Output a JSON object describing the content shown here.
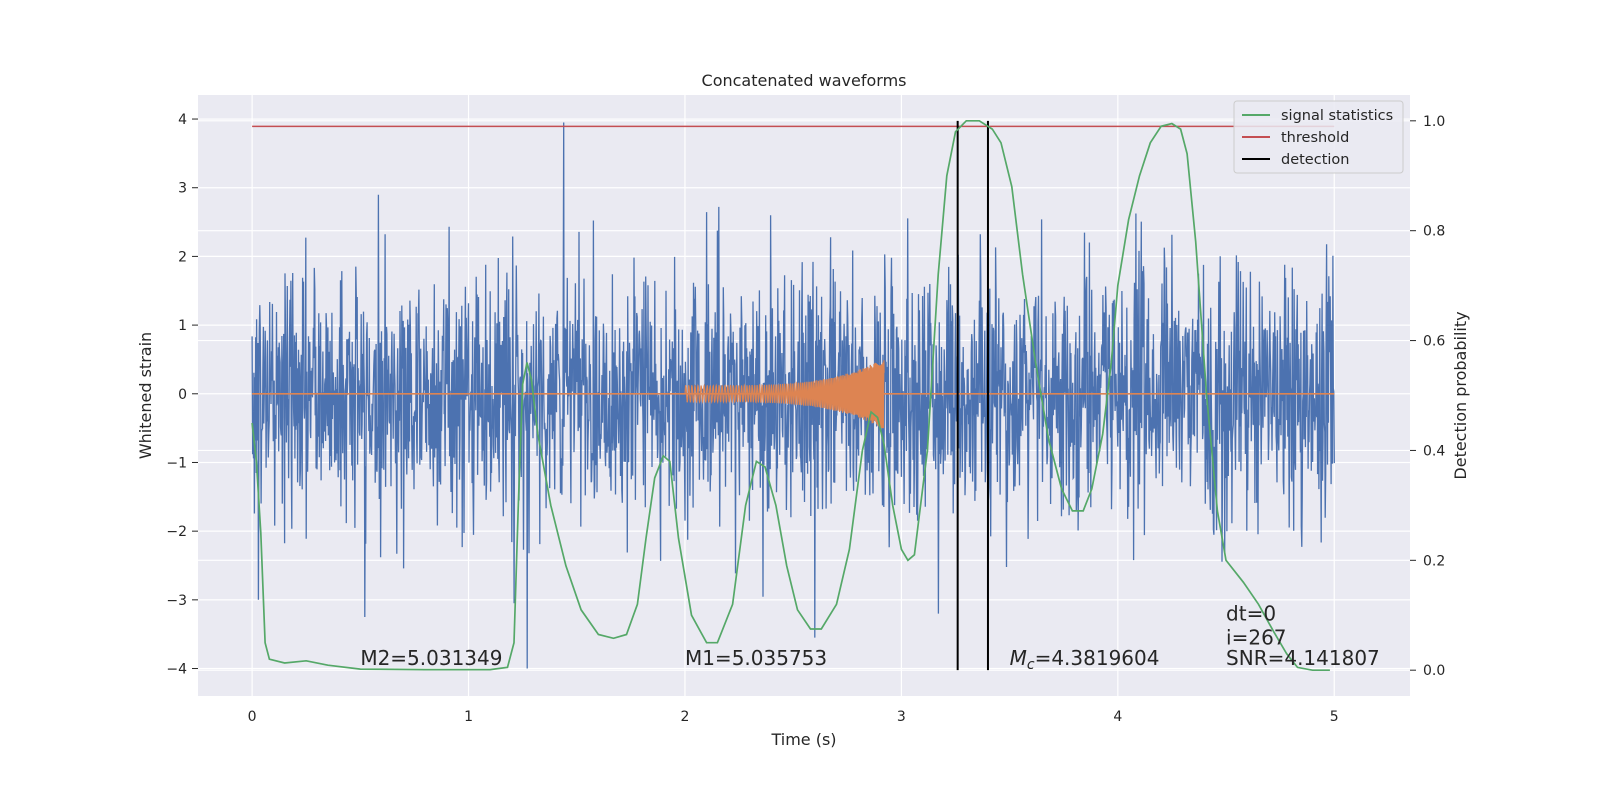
{
  "chart_data": {
    "type": "line",
    "title": "Concatenated waveforms",
    "xlabel": "Time (s)",
    "ylabel": "Whitened strain",
    "y2label": "Detection probability",
    "xlim": [
      -0.25,
      5.35
    ],
    "ylim": [
      -4.4,
      4.35
    ],
    "y2lim": [
      -0.047,
      1.047
    ],
    "xticks": [
      0,
      1,
      2,
      3,
      4,
      5
    ],
    "xtick_labels": [
      "0",
      "1",
      "2",
      "3",
      "4",
      "5"
    ],
    "yticks": [
      -4,
      -3,
      -2,
      -1,
      0,
      1,
      2,
      3,
      4
    ],
    "ytick_labels": [
      "−4",
      "−3",
      "−2",
      "−1",
      "0",
      "1",
      "2",
      "3",
      "4"
    ],
    "y2ticks": [
      0.0,
      0.2,
      0.4,
      0.6,
      0.8,
      1.0
    ],
    "y2tick_labels": [
      "0.0",
      "0.2",
      "0.4",
      "0.6",
      "0.8",
      "1.0"
    ],
    "grid": true,
    "legend_position": "top-right",
    "colors": {
      "background": "#eaeaf2",
      "grid": "#ffffff",
      "noise": "#4c72b0",
      "waveform": "#dd8452",
      "signal_statistics": "#55a868",
      "threshold": "#c44e52",
      "detection": "#000000"
    },
    "legend": [
      {
        "label": "signal statistics",
        "color": "#55a868"
      },
      {
        "label": "threshold",
        "color": "#c44e52"
      },
      {
        "label": "detection",
        "color": "#000000"
      }
    ],
    "threshold": {
      "value": 0.99,
      "x_range": [
        0,
        5
      ]
    },
    "detections": [
      3.26,
      3.4
    ],
    "noise": {
      "x_range": [
        0,
        5
      ],
      "typical_amplitude": 1.2,
      "spikes": [
        {
          "x": 1.44,
          "y": 3.95
        },
        {
          "x": 1.27,
          "y": -4.0
        },
        {
          "x": 0.52,
          "y": -3.25
        },
        {
          "x": 2.6,
          "y": -3.55
        },
        {
          "x": 3.17,
          "y": -3.2
        },
        {
          "x": 1.21,
          "y": -3.05
        },
        {
          "x": 0.03,
          "y": -3.0
        }
      ]
    },
    "injected_waveform": {
      "x_range": [
        2.0,
        2.92
      ],
      "start_amplitude": 0.12,
      "peak_amplitude": 0.52
    },
    "signal_statistics": [
      [
        0.0,
        0.45
      ],
      [
        0.02,
        0.38
      ],
      [
        0.04,
        0.25
      ],
      [
        0.06,
        0.05
      ],
      [
        0.08,
        0.02
      ],
      [
        0.15,
        0.013
      ],
      [
        0.25,
        0.017
      ],
      [
        0.35,
        0.009
      ],
      [
        0.5,
        0.002
      ],
      [
        0.8,
        0.001
      ],
      [
        1.1,
        0.001
      ],
      [
        1.18,
        0.005
      ],
      [
        1.21,
        0.05
      ],
      [
        1.23,
        0.3
      ],
      [
        1.25,
        0.52
      ],
      [
        1.27,
        0.56
      ],
      [
        1.29,
        0.53
      ],
      [
        1.32,
        0.43
      ],
      [
        1.38,
        0.3
      ],
      [
        1.45,
        0.19
      ],
      [
        1.52,
        0.11
      ],
      [
        1.6,
        0.065
      ],
      [
        1.67,
        0.058
      ],
      [
        1.73,
        0.065
      ],
      [
        1.78,
        0.12
      ],
      [
        1.82,
        0.24
      ],
      [
        1.86,
        0.35
      ],
      [
        1.9,
        0.39
      ],
      [
        1.93,
        0.38
      ],
      [
        1.97,
        0.24
      ],
      [
        2.03,
        0.1
      ],
      [
        2.1,
        0.05
      ],
      [
        2.15,
        0.05
      ],
      [
        2.22,
        0.12
      ],
      [
        2.28,
        0.3
      ],
      [
        2.33,
        0.38
      ],
      [
        2.37,
        0.37
      ],
      [
        2.42,
        0.3
      ],
      [
        2.47,
        0.19
      ],
      [
        2.52,
        0.11
      ],
      [
        2.58,
        0.075
      ],
      [
        2.63,
        0.075
      ],
      [
        2.7,
        0.12
      ],
      [
        2.76,
        0.22
      ],
      [
        2.82,
        0.4
      ],
      [
        2.86,
        0.47
      ],
      [
        2.89,
        0.46
      ],
      [
        2.92,
        0.41
      ],
      [
        2.96,
        0.3
      ],
      [
        3.0,
        0.22
      ],
      [
        3.03,
        0.2
      ],
      [
        3.06,
        0.21
      ],
      [
        3.12,
        0.4
      ],
      [
        3.17,
        0.72
      ],
      [
        3.21,
        0.9
      ],
      [
        3.25,
        0.98
      ],
      [
        3.3,
        1.0
      ],
      [
        3.36,
        1.0
      ],
      [
        3.42,
        0.985
      ],
      [
        3.46,
        0.96
      ],
      [
        3.51,
        0.88
      ],
      [
        3.56,
        0.72
      ],
      [
        3.62,
        0.56
      ],
      [
        3.68,
        0.42
      ],
      [
        3.74,
        0.33
      ],
      [
        3.79,
        0.29
      ],
      [
        3.84,
        0.29
      ],
      [
        3.88,
        0.33
      ],
      [
        3.93,
        0.43
      ],
      [
        3.97,
        0.56
      ],
      [
        4.0,
        0.7
      ],
      [
        4.05,
        0.82
      ],
      [
        4.1,
        0.9
      ],
      [
        4.15,
        0.96
      ],
      [
        4.2,
        0.99
      ],
      [
        4.25,
        0.995
      ],
      [
        4.29,
        0.985
      ],
      [
        4.32,
        0.94
      ],
      [
        4.36,
        0.78
      ],
      [
        4.41,
        0.5
      ],
      [
        4.46,
        0.29
      ],
      [
        4.5,
        0.2
      ],
      [
        4.58,
        0.16
      ],
      [
        4.65,
        0.12
      ],
      [
        4.72,
        0.07
      ],
      [
        4.78,
        0.03
      ],
      [
        4.83,
        0.005
      ],
      [
        4.9,
        0.0
      ],
      [
        4.98,
        0.0
      ]
    ],
    "annotations": [
      {
        "x": 0.5,
        "y": -3.85,
        "text": "M2=5.031349"
      },
      {
        "x": 2.0,
        "y": -3.85,
        "text": "M1=5.035753"
      },
      {
        "x": 3.5,
        "y": -3.85,
        "text_italic": "M",
        "text_sub": "c",
        "text": "=4.3819604"
      },
      {
        "x": 4.5,
        "y": -3.2,
        "text": "dt=0"
      },
      {
        "x": 4.5,
        "y": -3.55,
        "text": "i=267"
      },
      {
        "x": 4.5,
        "y": -3.85,
        "text": "SNR=4.141807"
      }
    ]
  }
}
